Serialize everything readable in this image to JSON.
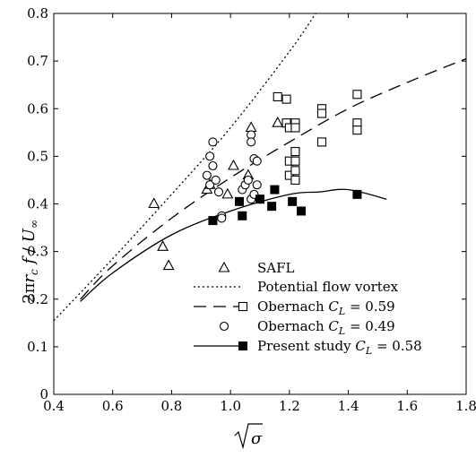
{
  "chart_data": {
    "type": "scatter",
    "xlabel": "√σ",
    "ylabel": "2πr_c f / U_∞",
    "xlim": [
      0.4,
      1.8
    ],
    "ylim": [
      0,
      0.8
    ],
    "xticks": [
      0.4,
      0.6,
      0.8,
      1.0,
      1.2,
      1.4,
      1.6,
      1.8
    ],
    "xtick_labels": [
      "0.4",
      "0.6",
      "0.8",
      "1.0",
      "1.2",
      "1.4",
      "1.6",
      "1.8"
    ],
    "yticks": [
      0,
      0.1,
      0.2,
      0.3,
      0.4,
      0.5,
      0.6,
      0.7,
      0.8
    ],
    "ytick_labels": [
      "0",
      "0.1",
      "0.2",
      "0.3",
      "0.4",
      "0.5",
      "0.6",
      "0.7",
      "0.8"
    ],
    "grid": false,
    "legend_position": "bottom-right",
    "series": [
      {
        "name": "SAFL",
        "kind": "points",
        "marker": "triangle",
        "x": [
          0.74,
          0.77,
          0.79,
          0.92,
          0.93,
          0.99,
          1.01,
          1.06,
          1.07,
          1.16
        ],
        "y": [
          0.4,
          0.31,
          0.27,
          0.43,
          0.44,
          0.42,
          0.48,
          0.46,
          0.56,
          0.57
        ]
      },
      {
        "name": "Potential flow vortex",
        "kind": "line",
        "dash": "dotted",
        "x": [
          0.4,
          0.6,
          0.8,
          1.0,
          1.2,
          1.3
        ],
        "y": [
          0.155,
          0.285,
          0.42,
          0.56,
          0.72,
          0.81
        ]
      },
      {
        "name": "Obernach fit C_L = 0.59",
        "kind": "line",
        "dash": "long-dash",
        "x": [
          0.49,
          0.6,
          0.8,
          1.0,
          1.2,
          1.4,
          1.6,
          1.8
        ],
        "y": [
          0.2,
          0.27,
          0.37,
          0.455,
          0.53,
          0.6,
          0.655,
          0.705
        ]
      },
      {
        "name": "Obernach C_L = 0.59",
        "kind": "points",
        "marker": "square-open",
        "x": [
          1.16,
          1.19,
          1.19,
          1.2,
          1.2,
          1.2,
          1.22,
          1.22,
          1.22,
          1.22,
          1.22,
          1.22,
          1.31,
          1.31,
          1.31,
          1.43,
          1.43,
          1.43
        ],
        "y": [
          0.625,
          0.62,
          0.57,
          0.56,
          0.49,
          0.46,
          0.57,
          0.56,
          0.51,
          0.49,
          0.47,
          0.45,
          0.6,
          0.59,
          0.53,
          0.63,
          0.57,
          0.555
        ]
      },
      {
        "name": "Obernach C_L = 0.49",
        "kind": "points",
        "marker": "circle-open",
        "x": [
          0.92,
          0.93,
          0.93,
          0.94,
          0.94,
          0.95,
          0.96,
          0.97,
          0.97,
          1.04,
          1.05,
          1.06,
          1.07,
          1.07,
          1.07,
          1.08,
          1.08,
          1.09,
          1.09,
          1.1
        ],
        "y": [
          0.46,
          0.5,
          0.44,
          0.53,
          0.48,
          0.45,
          0.425,
          0.375,
          0.37,
          0.43,
          0.44,
          0.45,
          0.41,
          0.545,
          0.53,
          0.495,
          0.42,
          0.44,
          0.49,
          0.41
        ]
      },
      {
        "name": "Present study fit C_L = 0.58",
        "kind": "line",
        "dash": "solid",
        "x": [
          0.49,
          0.6,
          0.8,
          1.0,
          1.2,
          1.3,
          1.4,
          1.53
        ],
        "y": [
          0.195,
          0.255,
          0.335,
          0.385,
          0.42,
          0.425,
          0.43,
          0.41
        ]
      },
      {
        "name": "Present study C_L = 0.58",
        "kind": "points",
        "marker": "square-filled",
        "x": [
          0.94,
          1.03,
          1.04,
          1.1,
          1.14,
          1.15,
          1.21,
          1.24,
          1.43
        ],
        "y": [
          0.365,
          0.405,
          0.375,
          0.41,
          0.395,
          0.43,
          0.405,
          0.385,
          0.42
        ]
      }
    ],
    "legend": [
      {
        "line": "none",
        "marker": "triangle",
        "label": "SAFL"
      },
      {
        "line": "dotted",
        "marker": "none",
        "label": "Potential flow vortex"
      },
      {
        "line": "long-dash",
        "marker": "square-open",
        "label_main": "Obernach ",
        "label_sym": "C",
        "label_sub": "L",
        "label_val": " = 0.59"
      },
      {
        "line": "none",
        "marker": "circle-open",
        "label_main": "Obernach ",
        "label_sym": "C",
        "label_sub": "L",
        "label_val": " = 0.49"
      },
      {
        "line": "solid",
        "marker": "square-filled",
        "label_main": "Present study ",
        "label_sym": "C",
        "label_sub": "L",
        "label_val": " = 0.58"
      }
    ]
  }
}
